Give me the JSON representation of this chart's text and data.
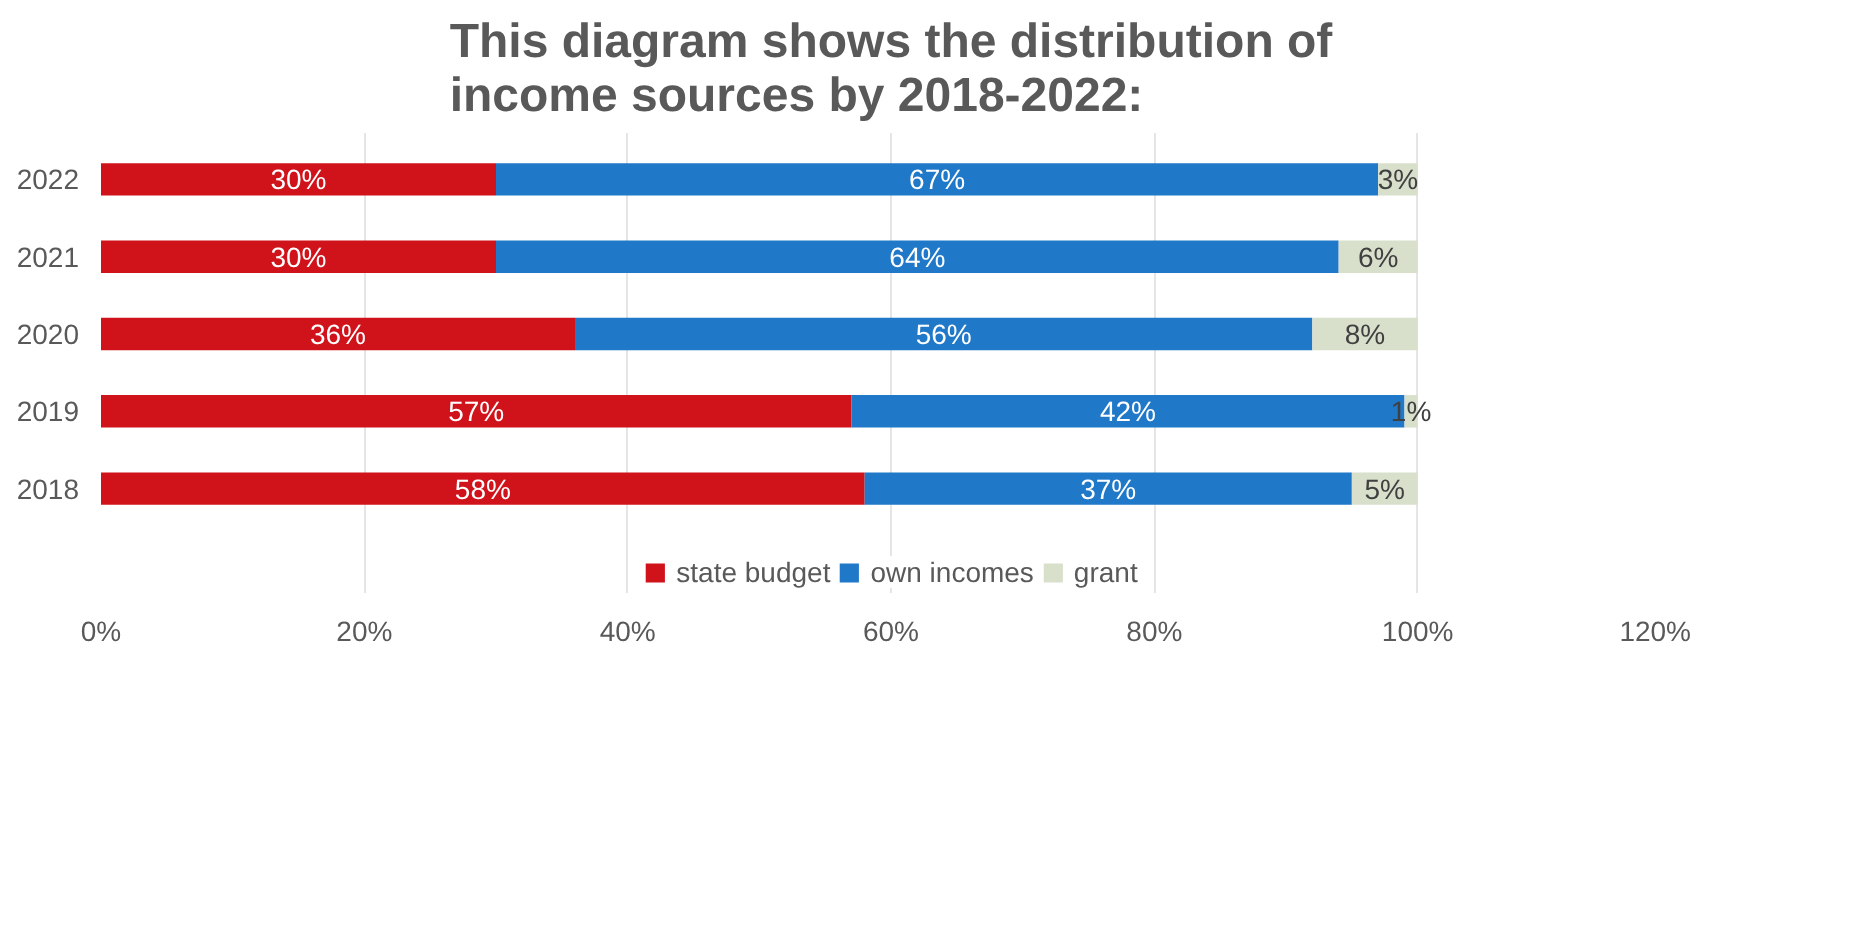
{
  "chart_data": {
    "type": "bar",
    "orientation": "horizontal",
    "stacked": true,
    "title": "This diagram shows the distribution of income sources by 2018-2022:",
    "categories": [
      "2022",
      "2021",
      "2020",
      "2019",
      "2018"
    ],
    "series": [
      {
        "name": "state budget",
        "color": "#d0121b",
        "values": [
          30,
          30,
          36,
          57,
          58
        ],
        "value_labels": [
          "30%",
          "30%",
          "36%",
          "57%",
          "58%"
        ]
      },
      {
        "name": "own incomes",
        "color": "#1f78c8",
        "values": [
          67,
          64,
          56,
          42,
          37
        ],
        "value_labels": [
          "67%",
          "64%",
          "56%",
          "42%",
          "37%"
        ]
      },
      {
        "name": "grant",
        "color": "#d8e0cc",
        "values": [
          3,
          6,
          8,
          1,
          5
        ],
        "value_labels": [
          "3%",
          "6%",
          "8%",
          "1%",
          "5%"
        ]
      }
    ],
    "xlim": [
      0,
      120
    ],
    "xticks": [
      {
        "value": 0,
        "label": "0%"
      },
      {
        "value": 20,
        "label": "20%"
      },
      {
        "value": 40,
        "label": "40%"
      },
      {
        "value": 60,
        "label": "60%"
      },
      {
        "value": 80,
        "label": "80%"
      },
      {
        "value": 100,
        "label": "100%"
      },
      {
        "value": 120,
        "label": "120%"
      }
    ],
    "grid": "x",
    "legend": "bottom"
  }
}
